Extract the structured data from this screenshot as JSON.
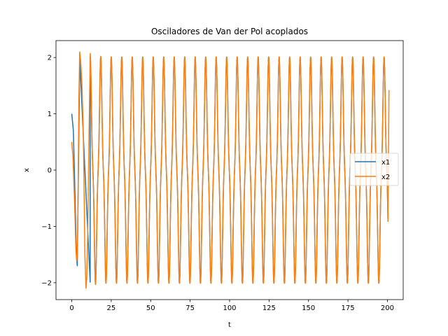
{
  "chart_data": {
    "type": "line",
    "title": "Osciladores de Van der Pol acoplados",
    "xlabel": "t",
    "ylabel": "x",
    "xlim": [
      -10,
      210
    ],
    "ylim": [
      -2.3,
      2.3
    ],
    "xticks": [
      0,
      25,
      50,
      75,
      100,
      125,
      150,
      175,
      200
    ],
    "yticks": [
      -2,
      -1,
      0,
      1,
      2
    ],
    "ytick_labels": [
      "−2",
      "−1",
      "0",
      "1",
      "2"
    ],
    "grid": false,
    "legend_position": "center-right",
    "series": [
      {
        "name": "x1",
        "color": "#1f77b4",
        "initial_value": 1.0,
        "description_points": {
          "t": [
            0,
            1,
            2,
            3,
            3.5
          ],
          "x": [
            1.0,
            0.7,
            -0.4,
            -1.55,
            -1.7
          ]
        }
      },
      {
        "name": "x2",
        "color": "#ff7f0e",
        "initial_value": 0.5,
        "period": 6.65,
        "amplitude": 2.01,
        "t_max": 201,
        "x_end": 1.42,
        "transient_peaks": {
          "t": [
            5.0,
            9.0,
            11.7,
            16.3
          ],
          "x": [
            2.1,
            -2.1,
            2.07,
            -2.05
          ]
        }
      }
    ]
  }
}
